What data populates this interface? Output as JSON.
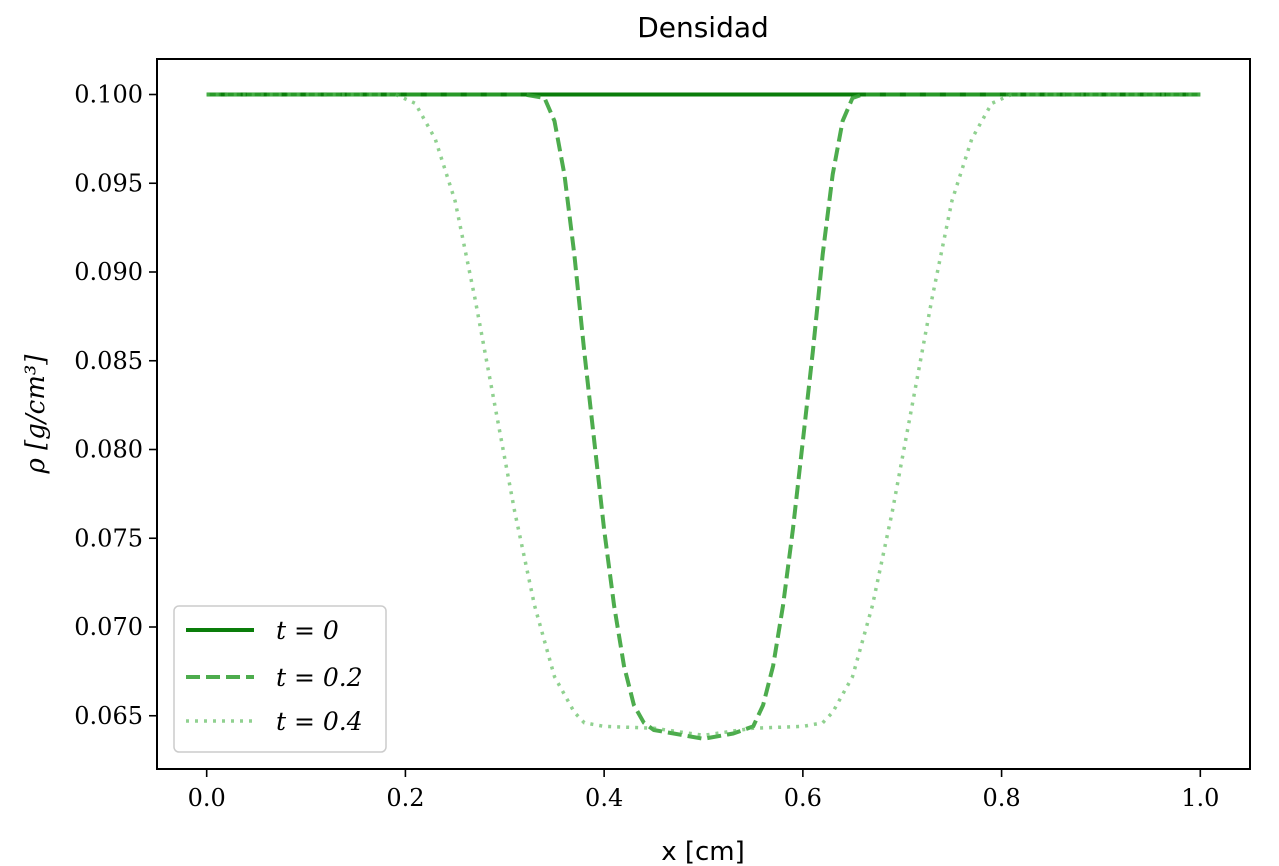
{
  "chart_data": {
    "type": "line",
    "title": "Densidad",
    "xlabel": "x [cm]",
    "ylabel": "ρ [g/cm³]",
    "xlim": [
      -0.05,
      1.05
    ],
    "ylim": [
      0.062,
      0.102
    ],
    "xticks": [
      0.0,
      0.2,
      0.4,
      0.6,
      0.8,
      1.0
    ],
    "xtick_labels": [
      "0.0",
      "0.2",
      "0.4",
      "0.6",
      "0.8",
      "1.0"
    ],
    "yticks": [
      0.065,
      0.07,
      0.075,
      0.08,
      0.085,
      0.09,
      0.095,
      0.1
    ],
    "ytick_labels": [
      "0.065",
      "0.070",
      "0.075",
      "0.080",
      "0.085",
      "0.090",
      "0.095",
      "0.100"
    ],
    "grid": false,
    "legend_position": "lower-left",
    "series": [
      {
        "name": "t = 0",
        "color": "#0a7d0a",
        "style": "solid",
        "opacity": 1.0,
        "x": [
          0.0,
          1.0
        ],
        "y": [
          0.1,
          0.1
        ]
      },
      {
        "name": "t = 0.2",
        "color": "#2e9e2e",
        "style": "dashed",
        "opacity": 0.85,
        "x": [
          0.0,
          0.32,
          0.34,
          0.35,
          0.36,
          0.37,
          0.38,
          0.39,
          0.4,
          0.41,
          0.42,
          0.43,
          0.44,
          0.45,
          0.47,
          0.5,
          0.53,
          0.55,
          0.56,
          0.57,
          0.58,
          0.59,
          0.6,
          0.61,
          0.62,
          0.63,
          0.64,
          0.65,
          0.66,
          0.68,
          1.0
        ],
        "y": [
          0.1,
          0.1,
          0.0998,
          0.0985,
          0.0955,
          0.091,
          0.0855,
          0.0805,
          0.0755,
          0.0712,
          0.0678,
          0.0656,
          0.0646,
          0.0642,
          0.064,
          0.0637,
          0.064,
          0.0644,
          0.0656,
          0.0678,
          0.0712,
          0.0755,
          0.0805,
          0.0855,
          0.091,
          0.0955,
          0.0985,
          0.0998,
          0.1,
          0.1,
          0.1
        ]
      },
      {
        "name": "t = 0.4",
        "color": "#55b855",
        "style": "dotted",
        "opacity": 0.65,
        "x": [
          0.0,
          0.19,
          0.21,
          0.23,
          0.25,
          0.27,
          0.29,
          0.31,
          0.33,
          0.35,
          0.37,
          0.38,
          0.4,
          0.45,
          0.5,
          0.55,
          0.6,
          0.62,
          0.63,
          0.65,
          0.67,
          0.69,
          0.71,
          0.73,
          0.75,
          0.77,
          0.79,
          0.81,
          1.0
        ],
        "y": [
          0.1,
          0.1,
          0.0995,
          0.0975,
          0.094,
          0.0885,
          0.0825,
          0.0765,
          0.0712,
          0.0672,
          0.0652,
          0.0646,
          0.0644,
          0.0643,
          0.0639,
          0.0643,
          0.0644,
          0.0646,
          0.0652,
          0.0672,
          0.0712,
          0.0765,
          0.0825,
          0.0885,
          0.094,
          0.0975,
          0.0995,
          0.1,
          0.1
        ]
      }
    ]
  }
}
